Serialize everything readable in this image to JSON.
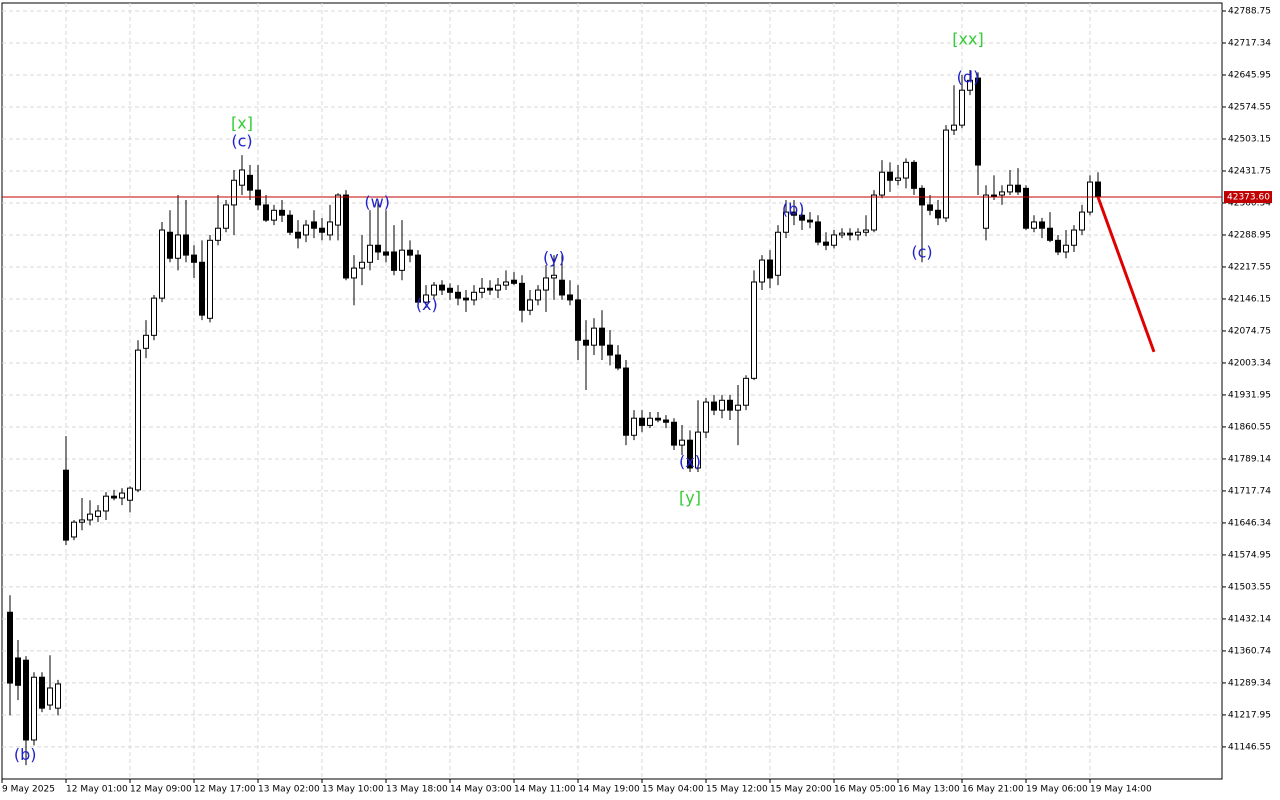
{
  "chart_data": {
    "type": "candlestick",
    "xlim": [
      -1,
      151.5
    ],
    "ylim": [
      41074.9,
      42806.6
    ],
    "grid": true,
    "xticks": [
      {
        "value": -1,
        "label": "9 May 2025"
      },
      {
        "value": 7,
        "label": "12 May 01:00"
      },
      {
        "value": 15,
        "label": "12 May 09:00"
      },
      {
        "value": 23,
        "label": "12 May 17:00"
      },
      {
        "value": 31,
        "label": "13 May 02:00"
      },
      {
        "value": 39,
        "label": "13 May 10:00"
      },
      {
        "value": 47,
        "label": "13 May 18:00"
      },
      {
        "value": 55,
        "label": "14 May 03:00"
      },
      {
        "value": 63,
        "label": "14 May 11:00"
      },
      {
        "value": 71,
        "label": "14 May 19:00"
      },
      {
        "value": 79,
        "label": "15 May 04:00"
      },
      {
        "value": 87,
        "label": "15 May 12:00"
      },
      {
        "value": 95,
        "label": "15 May 20:00"
      },
      {
        "value": 103,
        "label": "16 May 05:00"
      },
      {
        "value": 111,
        "label": "16 May 13:00"
      },
      {
        "value": 119,
        "label": "16 May 21:00"
      },
      {
        "value": 127,
        "label": "19 May 06:00"
      },
      {
        "value": 135,
        "label": "19 May 14:00"
      }
    ],
    "yticks": [
      42788.75,
      42717.34,
      42645.95,
      42574.55,
      42503.15,
      42431.75,
      42360.34,
      42288.95,
      42217.55,
      42146.15,
      42074.75,
      42003.34,
      41931.95,
      41860.55,
      41789.14,
      41717.74,
      41646.34,
      41574.95,
      41503.55,
      41432.14,
      41360.74,
      41289.34,
      41217.95,
      41146.55
    ],
    "last_price": {
      "value": 42373.6,
      "label": "42373.60",
      "color": "#c00000"
    },
    "up_color": "#ffffff",
    "down_color": "#000000",
    "open": [
      41447,
      41345,
      41340,
      41162,
      41302,
      41240,
      41233,
      41764,
      41615,
      41648,
      41653,
      41661,
      41673,
      41706,
      41702,
      41697,
      41720,
      42036,
      42065,
      42148,
      42295,
      42237,
      42289,
      42244,
      42228,
      42103,
      42277,
      42304,
      42356,
      42400,
      42422,
      42389,
      42356,
      42322,
      42344,
      42333,
      42295,
      42289,
      42318,
      42304,
      42289,
      42311,
      42378,
      42193,
      42215,
      42228,
      42266,
      42251,
      42251,
      42210,
      42255,
      42244,
      42139,
      42155,
      42177,
      42170,
      42161,
      42148,
      42144,
      42161,
      42170,
      42166,
      42177,
      42188,
      42181,
      42121,
      42144,
      42166,
      42193,
      42188,
      42155,
      42144,
      42054,
      42043,
      42081,
      42043,
      42021,
      41992,
      41842,
      41880,
      41864,
      41880,
      41876,
      41871,
      41820,
      41831,
      41769,
      41849,
      41916,
      41898,
      41920,
      41898,
      41909,
      41969,
      42184,
      42233,
      42199,
      42295,
      42340,
      42333,
      42322,
      42318,
      42273,
      42266,
      42289,
      42293,
      42289,
      42295,
      42300,
      42378,
      42429,
      42411,
      42416,
      42451,
      42393,
      42356,
      42344,
      42327,
      42523,
      42534,
      42612,
      42639,
      42304,
      42378,
      42378,
      42385,
      42400,
      42393,
      42304,
      42318,
      42304,
      42277,
      42251,
      42266,
      42300,
      42340,
      42407
    ],
    "high": [
      41485,
      41385,
      41349,
      41313,
      41313,
      41351,
      41296,
      41840,
      41653,
      41702,
      41697,
      41686,
      41715,
      41720,
      41724,
      41728,
      42054,
      42099,
      42155,
      42318,
      42344,
      42378,
      42367,
      42266,
      42277,
      42289,
      42378,
      42367,
      42434,
      42467,
      42445,
      42445,
      42378,
      42356,
      42367,
      42344,
      42322,
      42322,
      42344,
      42327,
      42356,
      42382,
      42389,
      42244,
      42289,
      42344,
      42367,
      42344,
      42311,
      42322,
      42277,
      42255,
      42177,
      42184,
      42188,
      42181,
      42177,
      42166,
      42177,
      42193,
      42188,
      42193,
      42210,
      42206,
      42199,
      42166,
      42177,
      42222,
      42244,
      42244,
      42188,
      42177,
      42099,
      42103,
      42121,
      42077,
      42043,
      42010,
      41898,
      41898,
      41894,
      41894,
      41887,
      41880,
      41865,
      41853,
      41920,
      41925,
      41932,
      41932,
      41932,
      41954,
      41976,
      42210,
      42244,
      42255,
      42311,
      42367,
      42367,
      42356,
      42340,
      42333,
      42295,
      42300,
      42304,
      42304,
      42304,
      42333,
      42389,
      42456,
      42451,
      42445,
      42460,
      42456,
      42400,
      42378,
      42367,
      42534,
      42623,
      42646,
      42657,
      42652,
      42400,
      42422,
      42400,
      42434,
      42438,
      42400,
      42333,
      42327,
      42340,
      42289,
      42300,
      42311,
      42356,
      42422,
      42429
    ],
    "low": [
      41217,
      41251,
      41106,
      41150,
      41224,
      41229,
      41217,
      41597,
      41608,
      41630,
      41641,
      41648,
      41653,
      41697,
      41686,
      41670,
      41715,
      42014,
      42054,
      42139,
      42228,
      42210,
      42228,
      42193,
      42099,
      42094,
      42266,
      42295,
      42289,
      42378,
      42367,
      42344,
      42318,
      42311,
      42318,
      42289,
      42259,
      42273,
      42282,
      42277,
      42277,
      42277,
      42188,
      42132,
      42177,
      42210,
      42233,
      42228,
      42199,
      42188,
      42228,
      42132,
      42126,
      42144,
      42155,
      42144,
      42132,
      42117,
      42132,
      42148,
      42155,
      42148,
      42166,
      42177,
      42094,
      42110,
      42132,
      42117,
      42144,
      42144,
      42132,
      42010,
      41943,
      42021,
      42010,
      41998,
      41987,
      41820,
      41831,
      41849,
      41858,
      41871,
      41858,
      41809,
      41798,
      41760,
      41760,
      41836,
      41887,
      41880,
      41876,
      41820,
      41898,
      41965,
      42166,
      42170,
      42177,
      42282,
      42311,
      42300,
      42304,
      42266,
      42255,
      42259,
      42282,
      42277,
      42277,
      42286,
      42295,
      42371,
      42385,
      42400,
      42393,
      42378,
      42228,
      42333,
      42311,
      42318,
      42512,
      42527,
      42601,
      42378,
      42277,
      42367,
      42356,
      42378,
      42378,
      42300,
      42295,
      42282,
      42273,
      42244,
      42237,
      42251,
      42289,
      42333,
      42367
    ],
    "close": [
      41289,
      41284,
      41162,
      41302,
      41233,
      41278,
      41287,
      41608,
      41648,
      41653,
      41666,
      41673,
      41706,
      41702,
      41713,
      41724,
      42032,
      42065,
      42148,
      42300,
      42237,
      42289,
      42244,
      42228,
      42110,
      42277,
      42304,
      42356,
      42411,
      42434,
      42389,
      42356,
      42322,
      42344,
      42333,
      42295,
      42282,
      42311,
      42304,
      42295,
      42318,
      42378,
      42193,
      42215,
      42228,
      42266,
      42251,
      42244,
      42210,
      42255,
      42244,
      42139,
      42155,
      42177,
      42166,
      42161,
      42148,
      42144,
      42161,
      42170,
      42166,
      42177,
      42184,
      42181,
      42121,
      42144,
      42166,
      42193,
      42199,
      42155,
      42144,
      42054,
      42043,
      42081,
      42043,
      42021,
      41992,
      41842,
      41880,
      41864,
      41880,
      41876,
      41871,
      41820,
      41831,
      41769,
      41849,
      41916,
      41898,
      41920,
      41898,
      41909,
      41969,
      42184,
      42233,
      42193,
      42295,
      42340,
      42333,
      42322,
      42318,
      42273,
      42266,
      42289,
      42293,
      42289,
      42295,
      42300,
      42378,
      42429,
      42411,
      42416,
      42451,
      42393,
      42356,
      42344,
      42327,
      42523,
      42534,
      42612,
      42634,
      42445,
      42378,
      42378,
      42385,
      42400,
      42385,
      42304,
      42318,
      42304,
      42277,
      42251,
      42266,
      42300,
      42340,
      42407,
      42373.6
    ],
    "projection": {
      "color": "#e00000",
      "x": [
        136,
        143
      ],
      "values": [
        42373.6,
        42028
      ]
    },
    "annotations": [
      {
        "text": "(b)",
        "color": "#2222cc",
        "x": 1.9,
        "y": 41127
      },
      {
        "text": "[x]",
        "color": "#33cc33",
        "x": 29,
        "y": 42537
      },
      {
        "text": "(c)",
        "color": "#2222cc",
        "x": 29,
        "y": 42496
      },
      {
        "text": "(w)",
        "color": "#2222cc",
        "x": 45.9,
        "y": 42360
      },
      {
        "text": "(x)",
        "color": "#2222cc",
        "x": 52.1,
        "y": 42131
      },
      {
        "text": "(y)",
        "color": "#2222cc",
        "x": 68,
        "y": 42236
      },
      {
        "text": "(x)",
        "color": "#2222cc",
        "x": 85,
        "y": 41781
      },
      {
        "text": "[y]",
        "color": "#33cc33",
        "x": 85,
        "y": 41701
      },
      {
        "text": "(b)",
        "color": "#2222cc",
        "x": 97.9,
        "y": 42345
      },
      {
        "text": "(c)",
        "color": "#2222cc",
        "x": 114,
        "y": 42249
      },
      {
        "text": "(d)",
        "color": "#2222cc",
        "x": 119.75,
        "y": 42639
      },
      {
        "text": "[xx]",
        "color": "#33cc33",
        "x": 119.75,
        "y": 42724
      }
    ]
  }
}
